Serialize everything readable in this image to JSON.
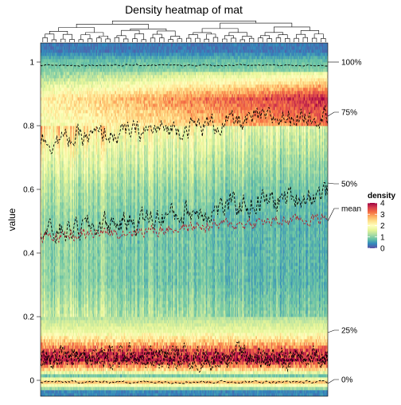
{
  "chart_data": {
    "type": "heatmap",
    "title": "Density heatmap of mat",
    "xlabel": "",
    "ylabel": "value",
    "ylim": [
      -0.05,
      1.06
    ],
    "y_ticks": [
      0,
      0.2,
      0.4,
      0.6,
      0.8,
      1
    ],
    "y_tick_labels": [
      "0",
      "0.2",
      "0.4",
      "0.6",
      "0.8",
      "1"
    ],
    "columns_count": 300,
    "quantile_lines": [
      {
        "name": "100%",
        "value": 1.0
      },
      {
        "name": "75%",
        "value": 0.83
      },
      {
        "name": "50%",
        "value": 0.62
      },
      {
        "name": "mean",
        "value": 0.5
      },
      {
        "name": "25%",
        "value": 0.15
      },
      {
        "name": "0%",
        "value": -0.01
      }
    ],
    "density_legend": {
      "title": "density",
      "ticks": [
        0,
        1,
        2,
        3,
        4
      ],
      "tick_labels": [
        "0",
        "1",
        "2",
        "3",
        "4"
      ],
      "colors": [
        "#5e4fa2",
        "#3288bd",
        "#66c2a5",
        "#abdda4",
        "#e6f598",
        "#ffffbf",
        "#fee08b",
        "#fdae61",
        "#f46d43",
        "#d53e4f",
        "#9e0142"
      ]
    },
    "density_profile": [
      {
        "y": -0.04,
        "density": 0.4
      },
      {
        "y": -0.01,
        "density": 2.6
      },
      {
        "y": 0.01,
        "density": 0.9
      },
      {
        "y": 0.03,
        "density": 2.4
      },
      {
        "y": 0.06,
        "density": 3.8
      },
      {
        "y": 0.09,
        "density": 3.3
      },
      {
        "y": 0.12,
        "density": 2.4
      },
      {
        "y": 0.15,
        "density": 1.7
      },
      {
        "y": 0.2,
        "density": 1.2
      },
      {
        "y": 0.3,
        "density": 0.9
      },
      {
        "y": 0.4,
        "density": 0.9
      },
      {
        "y": 0.5,
        "density": 0.9
      },
      {
        "y": 0.6,
        "density": 1.1
      },
      {
        "y": 0.7,
        "density": 1.5
      },
      {
        "y": 0.8,
        "density": 2.0
      },
      {
        "y": 0.88,
        "density": 2.4
      },
      {
        "y": 0.93,
        "density": 1.6
      },
      {
        "y": 0.97,
        "density": 1.0
      },
      {
        "y": 1.0,
        "density": 0.8
      },
      {
        "y": 1.03,
        "density": 0.3
      }
    ]
  }
}
